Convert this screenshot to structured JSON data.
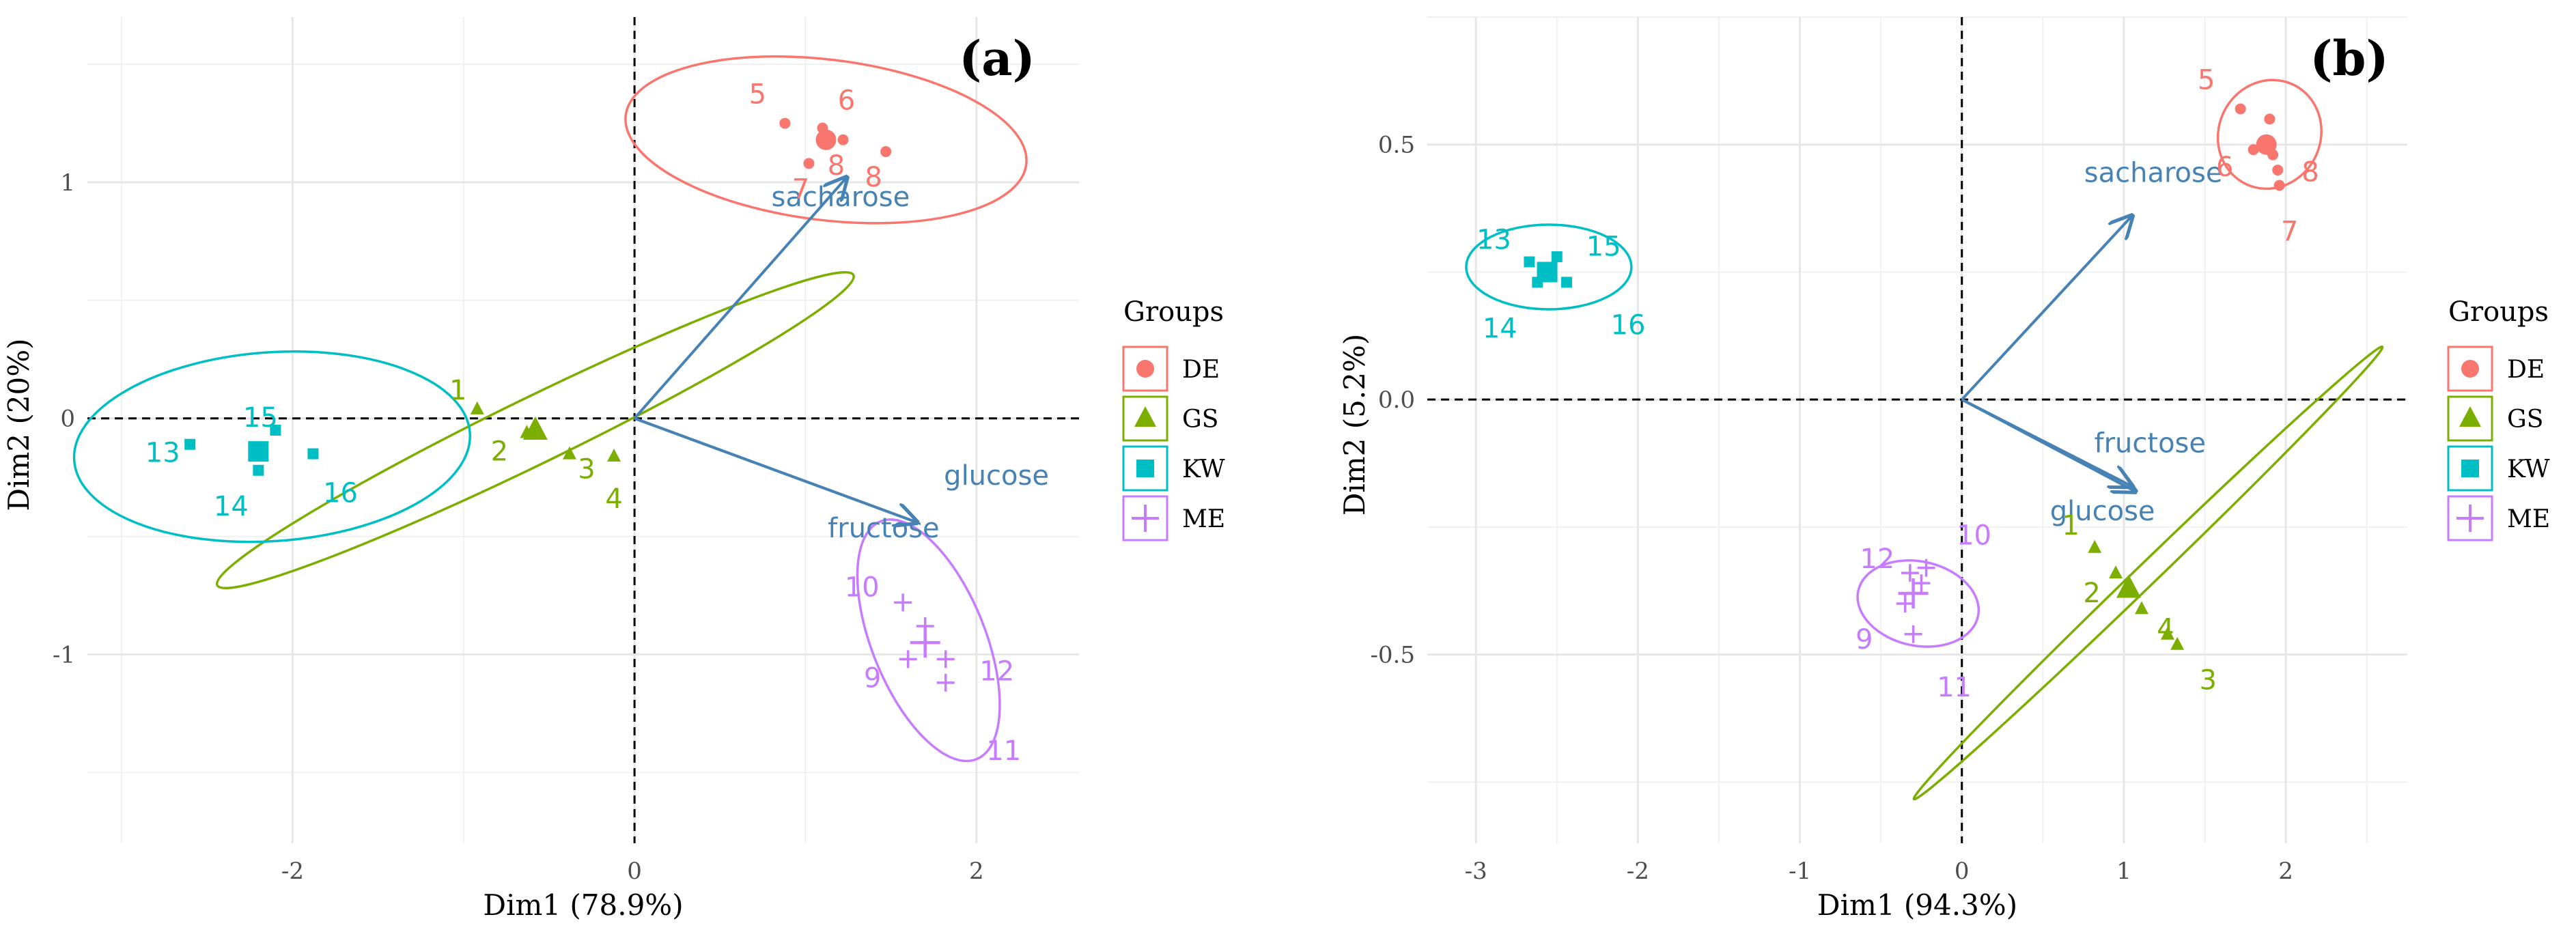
{
  "chart_data": [
    {
      "type": "scatter",
      "panel_label": "(a)",
      "xlabel": "Dim1 (78.9%)",
      "ylabel": "Dim2 (20%)",
      "xlim": [
        -3.2,
        2.6
      ],
      "ylim": [
        -1.8,
        1.7
      ],
      "x_ticks": [
        -2,
        0,
        2
      ],
      "x_tick_labels": [
        "-2",
        "0",
        "2"
      ],
      "y_ticks": [
        -1,
        0,
        1
      ],
      "y_tick_labels": [
        "-1",
        "0",
        "1"
      ],
      "grid": true,
      "legend_position": "right",
      "legend_title": "Groups",
      "groups": [
        {
          "name": "DE",
          "color": "#F8766D",
          "marker": "circle",
          "points": [
            {
              "x": 0.88,
              "y": 1.25,
              "label": "5"
            },
            {
              "x": 1.1,
              "y": 1.23,
              "label": "6"
            },
            {
              "x": 1.22,
              "y": 1.18,
              "label": "8"
            },
            {
              "x": 1.47,
              "y": 1.13,
              "label": "8"
            },
            {
              "x": 1.02,
              "y": 1.08,
              "label": "7"
            }
          ],
          "centroid": {
            "x": 1.12,
            "y": 1.18
          },
          "ellipse": {
            "cx": 1.12,
            "cy": 1.18,
            "rx": 1.18,
            "ry": 0.34,
            "angle": -7
          }
        },
        {
          "name": "GS",
          "color": "#7CAE00",
          "marker": "triangle",
          "points": [
            {
              "x": -0.92,
              "y": 0.04,
              "label": "1"
            },
            {
              "x": -0.63,
              "y": -0.06,
              "label": "2"
            },
            {
              "x": -0.38,
              "y": -0.15,
              "label": "3"
            },
            {
              "x": -0.12,
              "y": -0.16,
              "label": "4"
            }
          ],
          "centroid": {
            "x": -0.58,
            "y": -0.05
          },
          "ellipse": {
            "cx": -0.58,
            "cy": -0.05,
            "rx": 2.07,
            "ry": 0.14,
            "angle": 26
          }
        },
        {
          "name": "KW",
          "color": "#00BFC4",
          "marker": "square",
          "points": [
            {
              "x": -2.6,
              "y": -0.11,
              "label": "13"
            },
            {
              "x": -2.1,
              "y": -0.05,
              "label": "15"
            },
            {
              "x": -2.2,
              "y": -0.22,
              "label": "14"
            },
            {
              "x": -1.88,
              "y": -0.15,
              "label": "16"
            }
          ],
          "centroid": {
            "x": -2.2,
            "y": -0.14
          },
          "ellipse": {
            "cx": -2.12,
            "cy": -0.12,
            "rx": 1.16,
            "ry": 0.4,
            "angle": 4
          }
        },
        {
          "name": "ME",
          "color": "#C77CFF",
          "marker": "plus",
          "points": [
            {
              "x": 1.57,
              "y": -0.78,
              "label": "10"
            },
            {
              "x": 1.6,
              "y": -1.02,
              "label": "9"
            },
            {
              "x": 1.82,
              "y": -1.02,
              "label": "12"
            },
            {
              "x": 1.82,
              "y": -1.12,
              "label": "11"
            },
            {
              "x": 1.7,
              "y": -0.88,
              "label": ""
            }
          ],
          "centroid": {
            "x": 1.7,
            "y": -0.95
          },
          "ellipse": {
            "cx": 1.72,
            "cy": -0.94,
            "rx": 0.75,
            "ry": 0.24,
            "angle": -68
          }
        }
      ],
      "variables": [
        {
          "name": "sacharose",
          "x": 1.24,
          "y": 1.02
        },
        {
          "name": "glucose",
          "x": 1.65,
          "y": -0.44
        },
        {
          "name": "fructose",
          "x": 1.65,
          "y": -0.44
        }
      ]
    },
    {
      "type": "scatter",
      "panel_label": "(b)",
      "xlabel": "Dim1 (94.3%)",
      "ylabel": "Dim2 (5.2%)",
      "xlim": [
        -3.3,
        2.75
      ],
      "ylim": [
        -0.87,
        0.75
      ],
      "x_ticks": [
        -3,
        -2,
        -1,
        0,
        1,
        2
      ],
      "x_tick_labels": [
        "-3",
        "-2",
        "-1",
        "0",
        "1",
        "2"
      ],
      "y_ticks": [
        -0.5,
        0,
        0.5
      ],
      "y_tick_labels": [
        "-0.5",
        "0.0",
        "0.5"
      ],
      "grid": true,
      "legend_position": "right",
      "legend_title": "Groups",
      "groups": [
        {
          "name": "DE",
          "color": "#F8766D",
          "marker": "circle",
          "points": [
            {
              "x": 1.72,
              "y": 0.57,
              "label": "5"
            },
            {
              "x": 1.8,
              "y": 0.49,
              "label": "6"
            },
            {
              "x": 1.92,
              "y": 0.48,
              "label": "8"
            },
            {
              "x": 1.95,
              "y": 0.45,
              "label": ""
            },
            {
              "x": 1.9,
              "y": 0.55,
              "label": ""
            },
            {
              "x": 1.96,
              "y": 0.42,
              "label": "7"
            }
          ],
          "centroid": {
            "x": 1.88,
            "y": 0.5
          },
          "ellipse": {
            "cx": 1.9,
            "cy": 0.52,
            "rx": 0.34,
            "ry": 0.1,
            "angle": 65
          }
        },
        {
          "name": "GS",
          "color": "#7CAE00",
          "marker": "triangle",
          "points": [
            {
              "x": 0.82,
              "y": -0.29,
              "label": "1"
            },
            {
              "x": 0.95,
              "y": -0.34,
              "label": "2"
            },
            {
              "x": 1.11,
              "y": -0.41,
              "label": "4"
            },
            {
              "x": 1.27,
              "y": -0.46,
              "label": ""
            },
            {
              "x": 1.33,
              "y": -0.48,
              "label": "3"
            }
          ],
          "centroid": {
            "x": 1.03,
            "y": -0.37
          },
          "ellipse": {
            "cx": 1.15,
            "cy": -0.34,
            "rx": 2.01,
            "ry": 0.021,
            "angle": 44
          }
        },
        {
          "name": "KW",
          "color": "#00BFC4",
          "marker": "square",
          "points": [
            {
              "x": -2.67,
              "y": 0.27,
              "label": "13"
            },
            {
              "x": -2.57,
              "y": 0.25,
              "label": "15"
            },
            {
              "x": -2.62,
              "y": 0.23,
              "label": "14"
            },
            {
              "x": -2.44,
              "y": 0.23,
              "label": "16"
            },
            {
              "x": -2.5,
              "y": 0.28,
              "label": ""
            }
          ],
          "centroid": {
            "x": -2.56,
            "y": 0.25
          },
          "ellipse": {
            "cx": -2.55,
            "cy": 0.26,
            "rx": 0.51,
            "ry": 0.083,
            "angle": 0
          }
        },
        {
          "name": "ME",
          "color": "#C77CFF",
          "marker": "plus",
          "points": [
            {
              "x": -0.32,
              "y": -0.34,
              "label": "12"
            },
            {
              "x": -0.22,
              "y": -0.33,
              "label": "10"
            },
            {
              "x": -0.35,
              "y": -0.4,
              "label": "9"
            },
            {
              "x": -0.3,
              "y": -0.46,
              "label": "11"
            },
            {
              "x": -0.25,
              "y": -0.36,
              "label": ""
            }
          ],
          "centroid": {
            "x": -0.3,
            "y": -0.38
          },
          "ellipse": {
            "cx": -0.27,
            "cy": -0.4,
            "rx": 0.26,
            "ry": 0.12,
            "angle": 78
          }
        }
      ],
      "variables": [
        {
          "name": "sacharose",
          "x": 1.05,
          "y": 0.36
        },
        {
          "name": "fructose",
          "x": 1.07,
          "y": -0.18
        },
        {
          "name": "glucose",
          "x": 1.05,
          "y": -0.17
        }
      ]
    }
  ]
}
